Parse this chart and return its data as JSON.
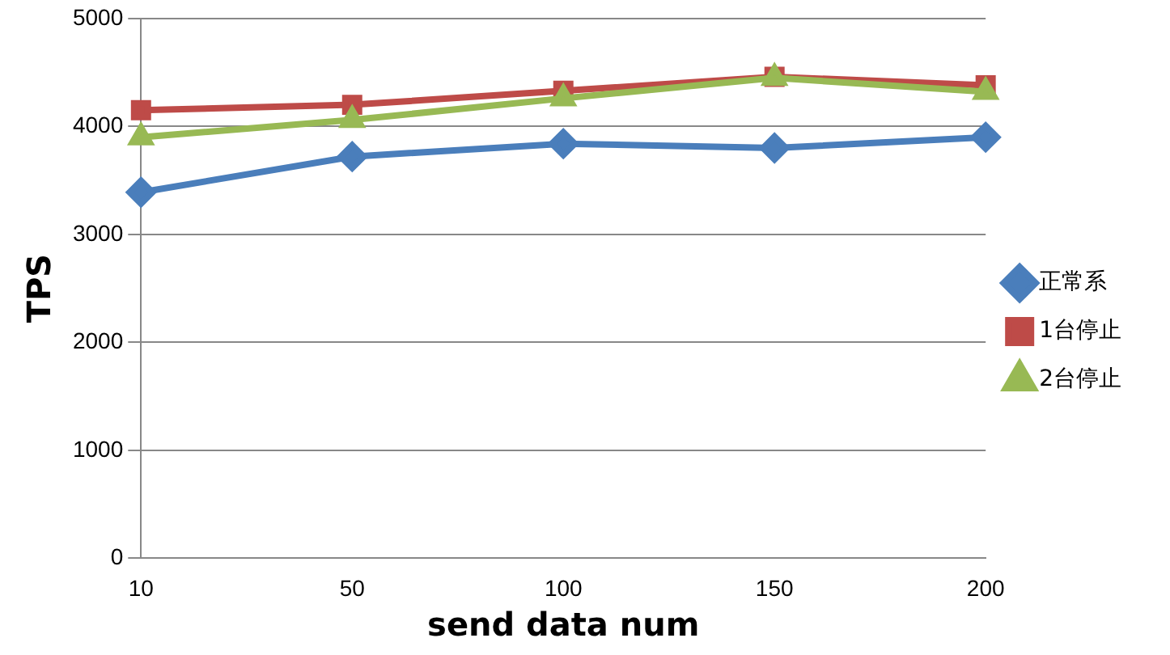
{
  "chart_data": {
    "type": "line",
    "xlabel": "send data num",
    "ylabel": "TPS",
    "categories": [
      "10",
      "50",
      "100",
      "150",
      "200"
    ],
    "series": [
      {
        "name": "正常系",
        "color": "#4a7ebb",
        "marker": "diamond",
        "values": [
          3390,
          3720,
          3840,
          3800,
          3900
        ]
      },
      {
        "name": "1台停止",
        "color": "#be4b48",
        "marker": "square",
        "values": [
          4150,
          4200,
          4330,
          4460,
          4380
        ]
      },
      {
        "name": "2台停止",
        "color": "#98b954",
        "marker": "triangle",
        "values": [
          3900,
          4060,
          4260,
          4450,
          4320
        ]
      }
    ],
    "ylim": [
      0,
      5000
    ],
    "yticks": [
      0,
      1000,
      2000,
      3000,
      4000,
      5000
    ],
    "grid": "y",
    "legend": "right",
    "line_style": "solid"
  }
}
